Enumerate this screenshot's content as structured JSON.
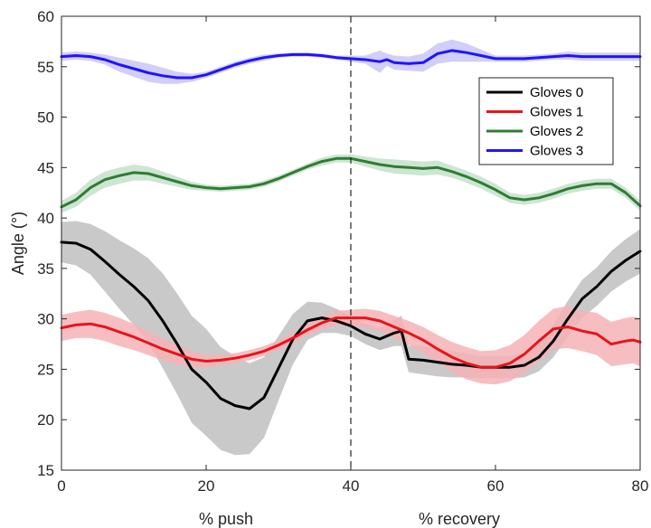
{
  "chart_data": {
    "type": "line",
    "xlabel": "% push",
    "xlabel2": "% recovery",
    "ylabel": "Angle (°)",
    "xlim": [
      0,
      80
    ],
    "ylim": [
      15,
      60
    ],
    "x_ticks": [
      "0",
      "20",
      "40",
      "60",
      "80"
    ],
    "y_ticks": [
      "15",
      "20",
      "25",
      "30",
      "35",
      "40",
      "45",
      "50",
      "55",
      "60"
    ],
    "vertical_line_x": 40,
    "legend_position": "top-right",
    "grid": false,
    "series": [
      {
        "name": "Gloves 0",
        "color": "#000000",
        "band_color": "#bfbfbf",
        "x": [
          0,
          2,
          4,
          6,
          8,
          10,
          12,
          14,
          16,
          18,
          20,
          22,
          24,
          26,
          28,
          30,
          32,
          34,
          36,
          38,
          40,
          42,
          44,
          46,
          47,
          48,
          50,
          52,
          54,
          56,
          58,
          60,
          62,
          64,
          66,
          68,
          70,
          72,
          74,
          76,
          78,
          80
        ],
        "values": [
          37.6,
          37.5,
          36.9,
          35.7,
          34.4,
          33.2,
          31.8,
          29.8,
          27.5,
          25.0,
          23.7,
          22.1,
          21.4,
          21.1,
          22.2,
          25.1,
          28.0,
          29.8,
          30.1,
          29.8,
          29.3,
          28.5,
          28.0,
          28.6,
          28.8,
          26.0,
          25.9,
          25.7,
          25.5,
          25.4,
          25.2,
          25.2,
          25.2,
          25.4,
          26.2,
          27.8,
          30.0,
          32.0,
          33.2,
          34.7,
          35.8,
          36.7
        ],
        "spread": [
          2.0,
          2.2,
          2.5,
          3.0,
          3.4,
          3.8,
          4.2,
          4.7,
          5.0,
          5.3,
          5.3,
          5.1,
          4.9,
          4.5,
          4.0,
          3.2,
          2.5,
          1.9,
          1.5,
          1.2,
          1.0,
          1.0,
          1.1,
          1.3,
          1.5,
          1.3,
          1.4,
          1.4,
          1.3,
          1.2,
          1.1,
          1.1,
          1.1,
          1.2,
          1.4,
          1.6,
          1.8,
          1.9,
          1.9,
          2.0,
          2.1,
          2.2
        ]
      },
      {
        "name": "Gloves 1",
        "color": "#e8141c",
        "band_color": "#f6b3b6",
        "x": [
          0,
          2,
          4,
          6,
          8,
          10,
          12,
          14,
          16,
          18,
          20,
          22,
          24,
          26,
          28,
          30,
          32,
          34,
          36,
          38,
          40,
          42,
          44,
          46,
          48,
          50,
          52,
          54,
          56,
          58,
          60,
          62,
          64,
          66,
          68,
          70,
          72,
          74,
          76,
          78,
          79,
          80
        ],
        "values": [
          29.1,
          29.4,
          29.5,
          29.2,
          28.7,
          28.2,
          27.6,
          27.0,
          26.5,
          26.0,
          25.8,
          25.9,
          26.1,
          26.4,
          26.8,
          27.4,
          28.1,
          28.9,
          29.6,
          30.1,
          30.1,
          30.1,
          29.8,
          29.2,
          28.6,
          27.9,
          27.0,
          26.2,
          25.6,
          25.2,
          25.2,
          25.6,
          26.5,
          27.8,
          29.0,
          29.2,
          28.8,
          28.5,
          27.5,
          27.8,
          27.9,
          27.7
        ],
        "spread": [
          1.3,
          1.3,
          1.4,
          1.4,
          1.4,
          1.3,
          1.2,
          1.1,
          1.0,
          0.8,
          0.6,
          0.5,
          0.5,
          0.5,
          0.5,
          0.5,
          0.5,
          0.6,
          0.6,
          0.7,
          0.8,
          0.9,
          1.0,
          1.1,
          1.2,
          1.3,
          1.4,
          1.5,
          1.6,
          1.6,
          1.7,
          1.8,
          1.9,
          2.0,
          2.0,
          2.1,
          2.0,
          2.1,
          2.2,
          2.3,
          2.3,
          2.4
        ]
      },
      {
        "name": "Gloves 2",
        "color": "#2e7d32",
        "band_color": "#c6e1cc",
        "x": [
          0,
          2,
          4,
          6,
          8,
          10,
          12,
          14,
          16,
          18,
          20,
          22,
          24,
          26,
          28,
          30,
          32,
          34,
          36,
          38,
          40,
          42,
          44,
          46,
          48,
          50,
          52,
          54,
          56,
          58,
          60,
          62,
          64,
          66,
          68,
          70,
          72,
          74,
          76,
          78,
          80
        ],
        "values": [
          41.1,
          41.8,
          43.0,
          43.8,
          44.2,
          44.5,
          44.4,
          44.0,
          43.6,
          43.2,
          43.0,
          42.9,
          43.0,
          43.1,
          43.4,
          43.9,
          44.5,
          45.1,
          45.6,
          45.9,
          45.9,
          45.6,
          45.3,
          45.1,
          45.0,
          44.9,
          45.0,
          44.6,
          44.1,
          43.5,
          42.8,
          42.0,
          41.8,
          42.0,
          42.4,
          42.9,
          43.2,
          43.4,
          43.4,
          42.5,
          41.2
        ],
        "spread": [
          0.6,
          0.7,
          0.8,
          0.8,
          0.8,
          0.8,
          0.7,
          0.6,
          0.5,
          0.4,
          0.3,
          0.3,
          0.3,
          0.3,
          0.3,
          0.3,
          0.3,
          0.3,
          0.4,
          0.4,
          0.4,
          0.5,
          0.6,
          0.7,
          0.7,
          0.7,
          0.7,
          0.6,
          0.6,
          0.6,
          0.6,
          0.5,
          0.5,
          0.5,
          0.5,
          0.5,
          0.5,
          0.5,
          0.5,
          0.5,
          0.5
        ]
      },
      {
        "name": "Gloves 3",
        "color": "#1f14ff",
        "band_color": "#c9c6f6",
        "x": [
          0,
          2,
          4,
          6,
          8,
          10,
          12,
          14,
          16,
          18,
          20,
          22,
          24,
          26,
          28,
          30,
          32,
          34,
          36,
          38,
          40,
          42,
          44,
          45,
          46,
          48,
          50,
          52,
          54,
          56,
          58,
          60,
          62,
          64,
          66,
          68,
          70,
          72,
          74,
          76,
          78,
          80
        ],
        "values": [
          56.0,
          56.1,
          56.0,
          55.7,
          55.2,
          54.8,
          54.4,
          54.1,
          53.9,
          53.9,
          54.2,
          54.7,
          55.2,
          55.6,
          55.9,
          56.1,
          56.2,
          56.2,
          56.1,
          55.9,
          55.8,
          55.7,
          55.5,
          55.7,
          55.4,
          55.3,
          55.4,
          56.3,
          56.6,
          56.4,
          56.1,
          55.8,
          55.8,
          55.8,
          55.9,
          56.0,
          56.1,
          56.0,
          56.0,
          56.0,
          56.0,
          56.0
        ],
        "spread": [
          0.4,
          0.4,
          0.4,
          0.5,
          0.7,
          0.8,
          0.9,
          0.8,
          0.6,
          0.4,
          0.3,
          0.3,
          0.3,
          0.3,
          0.3,
          0.2,
          0.2,
          0.2,
          0.2,
          0.2,
          0.3,
          0.4,
          1.1,
          0.6,
          0.7,
          0.7,
          0.9,
          1.0,
          1.1,
          0.9,
          0.6,
          0.3,
          0.3,
          0.3,
          0.3,
          0.3,
          0.4,
          0.4,
          0.4,
          0.4,
          0.4,
          0.4
        ]
      }
    ]
  }
}
